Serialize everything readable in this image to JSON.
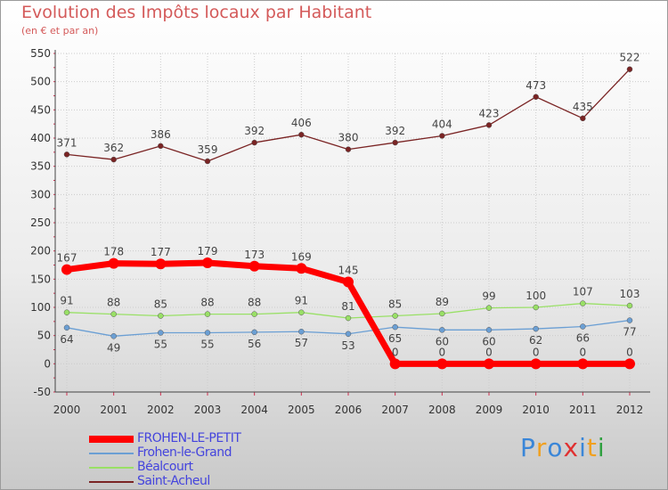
{
  "title": "Evolution des Impôts locaux par Habitant",
  "subtitle": "(en € et par an)",
  "logo": {
    "text": "Proxiti",
    "letters": [
      {
        "ch": "P",
        "color": "#3a86d8"
      },
      {
        "ch": "r",
        "color": "#f0a020"
      },
      {
        "ch": "o",
        "color": "#3a86d8"
      },
      {
        "ch": "x",
        "color": "#e03030"
      },
      {
        "ch": "i",
        "color": "#3a86d8"
      },
      {
        "ch": "t",
        "color": "#f0a020"
      },
      {
        "ch": "i",
        "color": "#30a040"
      }
    ]
  },
  "chart_data": {
    "type": "line",
    "title": "Evolution des Impôts locaux par Habitant",
    "subtitle": "(en € et par an)",
    "xlabel": "",
    "ylabel": "",
    "ylim": [
      -50,
      550
    ],
    "yticks": [
      -50,
      0,
      50,
      100,
      150,
      200,
      250,
      300,
      350,
      400,
      450,
      500,
      550
    ],
    "categories": [
      "2000",
      "2001",
      "2002",
      "2003",
      "2004",
      "2005",
      "2006",
      "2007",
      "2008",
      "2009",
      "2010",
      "2011",
      "2012"
    ],
    "grid": true,
    "legend_position": "bottom-left",
    "series": [
      {
        "name": "FROHEN-LE-PETIT",
        "color": "#ff0000",
        "emphasis": true,
        "label_above": true,
        "values": [
          167,
          178,
          177,
          179,
          173,
          169,
          145,
          0,
          0,
          0,
          0,
          0,
          0
        ]
      },
      {
        "name": "Frohen-le-Grand",
        "color": "#6b9fd4",
        "emphasis": false,
        "label_above": false,
        "values": [
          64,
          49,
          55,
          55,
          56,
          57,
          53,
          65,
          60,
          60,
          62,
          66,
          77
        ]
      },
      {
        "name": "Béalcourt",
        "color": "#99e066",
        "emphasis": false,
        "label_above": true,
        "values": [
          91,
          88,
          85,
          88,
          88,
          91,
          81,
          85,
          89,
          99,
          100,
          107,
          103
        ]
      },
      {
        "name": "Saint-Acheul",
        "color": "#7a2424",
        "emphasis": false,
        "label_above": true,
        "values": [
          371,
          362,
          386,
          359,
          392,
          406,
          380,
          392,
          404,
          423,
          473,
          435,
          522
        ]
      }
    ]
  }
}
